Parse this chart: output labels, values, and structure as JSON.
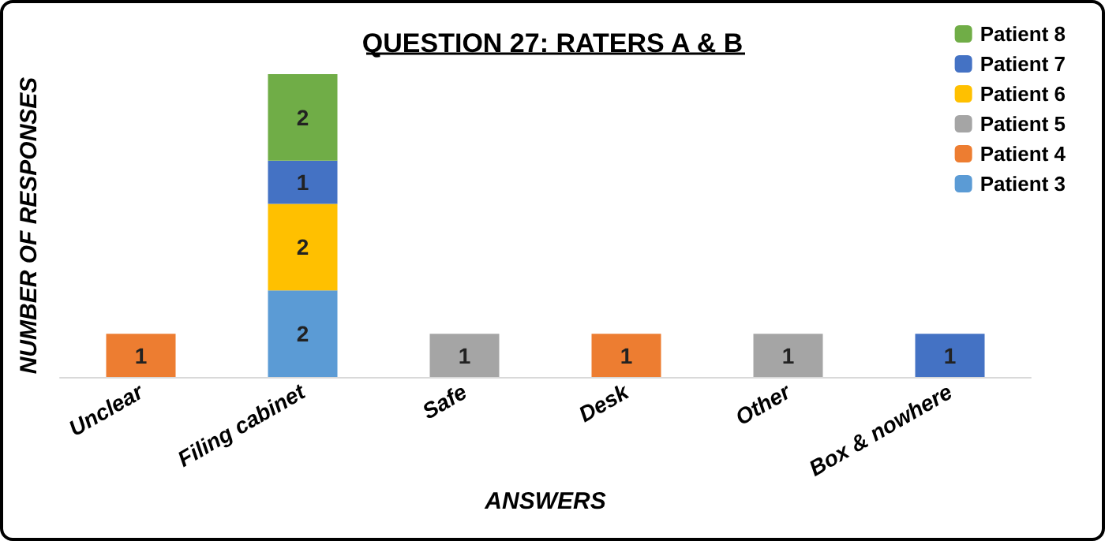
{
  "chart_data": {
    "type": "bar",
    "title": "QUESTION 27: RATERS A & B",
    "xlabel": "ANSWERS",
    "ylabel": "NUMBER OF RESPONSES",
    "categories": [
      "Unclear",
      "Filing cabinet",
      "Safe",
      "Desk",
      "Other",
      "Box & nowhere"
    ],
    "stacked": true,
    "data_labels": true,
    "legend": "top right",
    "grid": false,
    "series": [
      {
        "name": "Patient 3",
        "color": "#5b9bd5",
        "values": [
          null,
          2,
          null,
          null,
          null,
          null
        ]
      },
      {
        "name": "Patient 4",
        "color": "#ed7d31",
        "values": [
          1,
          null,
          null,
          1,
          null,
          null
        ]
      },
      {
        "name": "Patient 5",
        "color": "#a5a5a5",
        "values": [
          null,
          null,
          1,
          null,
          1,
          null
        ]
      },
      {
        "name": "Patient 6",
        "color": "#ffc000",
        "values": [
          null,
          2,
          null,
          null,
          null,
          null
        ]
      },
      {
        "name": "Patient 7",
        "color": "#4472c4",
        "values": [
          null,
          1,
          null,
          null,
          null,
          1
        ]
      },
      {
        "name": "Patient 8",
        "color": "#70ad47",
        "values": [
          null,
          2,
          null,
          null,
          null,
          null
        ]
      }
    ]
  }
}
